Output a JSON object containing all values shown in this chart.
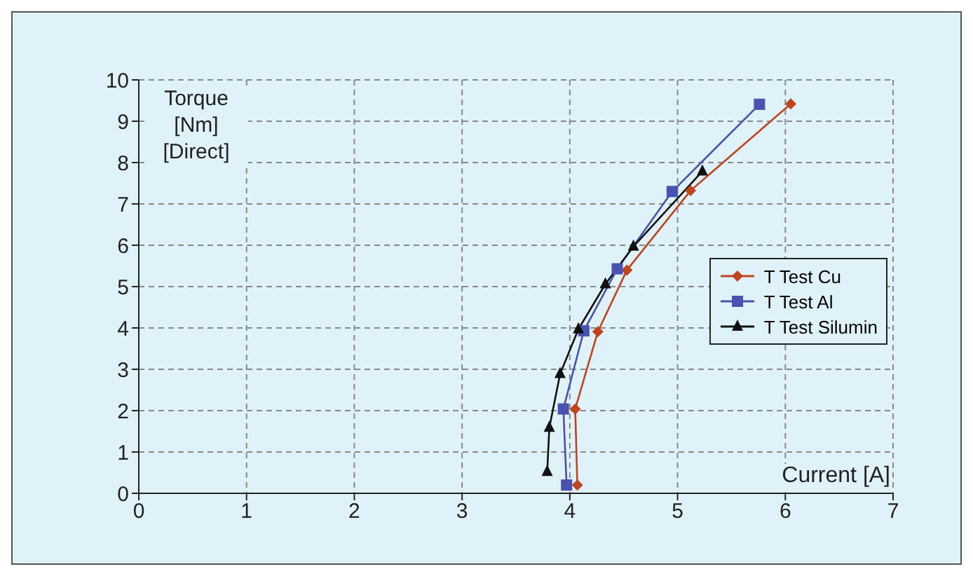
{
  "chart_data": {
    "type": "line",
    "xlabel": "Current [A]",
    "ylabel": "Torque [Nm] [Direct]",
    "xlim": [
      0,
      7
    ],
    "xticks": [
      0,
      1,
      2,
      3,
      4,
      5,
      6,
      7
    ],
    "ylim": [
      0,
      10
    ],
    "yticks": [
      0,
      1,
      2,
      3,
      4,
      5,
      6,
      7,
      8,
      9,
      10
    ],
    "grid": true,
    "legend": "right",
    "line_style": "solid",
    "series": [
      {
        "name": "T Test Cu",
        "color": "#c0441e",
        "marker": "diamond",
        "x": [
          4.07,
          4.05,
          4.26,
          4.53,
          5.12,
          6.05
        ],
        "values": [
          0.2,
          2.04,
          3.91,
          5.4,
          7.32,
          9.42
        ]
      },
      {
        "name": "T Test Al",
        "color": "#4a52b0",
        "marker": "square",
        "x": [
          3.97,
          3.94,
          4.13,
          4.44,
          4.95,
          5.76
        ],
        "values": [
          0.2,
          2.04,
          3.93,
          5.43,
          7.3,
          9.41
        ]
      },
      {
        "name": "T Test Silumin",
        "color": "#111111",
        "marker": "triangle",
        "x": [
          3.79,
          3.81,
          3.91,
          4.08,
          4.33,
          4.59,
          5.23
        ],
        "values": [
          0.52,
          1.59,
          2.89,
          3.97,
          5.06,
          5.97,
          7.79
        ]
      }
    ]
  }
}
